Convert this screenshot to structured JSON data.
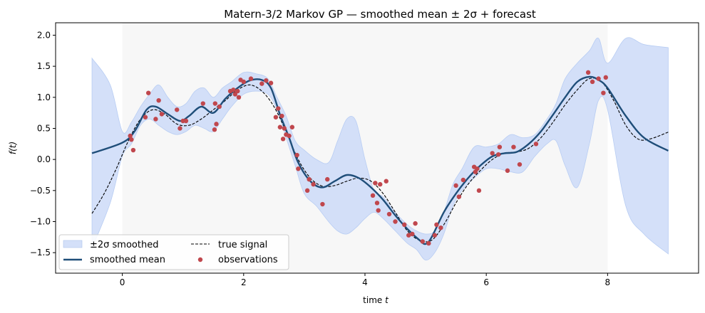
{
  "chart_data": {
    "type": "line",
    "title": "Matern-3/2 Markov GP — smoothed mean ± 2σ + forecast",
    "xlabel": "time",
    "xlabel_var": "t",
    "ylabel": "f(t)",
    "xlim": [
      -1.1,
      9.5
    ],
    "ylim": [
      -1.83,
      2.2
    ],
    "xticks": [
      0,
      2,
      4,
      6,
      8
    ],
    "yticks": [
      -1.5,
      -1.0,
      -0.5,
      0.0,
      0.5,
      1.0,
      1.5,
      2.0
    ],
    "xtick_labels": [
      "0",
      "2",
      "4",
      "6",
      "8"
    ],
    "ytick_labels": [
      "−1.5",
      "−1.0",
      "−0.5",
      "0.0",
      "0.5",
      "1.0",
      "1.5",
      "2.0"
    ],
    "shaded_region": {
      "x": [
        0,
        8
      ],
      "color": "#f7f7f7"
    },
    "grid": false,
    "legend_position": "lower-left",
    "legend": [
      {
        "label": "±2σ smoothed",
        "kind": "band"
      },
      {
        "label": "smoothed mean",
        "kind": "line"
      },
      {
        "label": "true signal",
        "kind": "dashed"
      },
      {
        "label": "observations",
        "kind": "dot"
      }
    ],
    "colors": {
      "band": "#c9d8f7",
      "mean": "#1f4e79",
      "true": "#000000",
      "obs": "#c0474d"
    },
    "series": [
      {
        "name": "smoothed mean",
        "x": [
          -0.5,
          0.0,
          0.2,
          0.4,
          0.55,
          0.75,
          0.95,
          1.1,
          1.3,
          1.5,
          1.7,
          1.9,
          2.1,
          2.3,
          2.45,
          2.6,
          2.75,
          2.9,
          3.1,
          3.3,
          3.5,
          3.7,
          3.9,
          4.1,
          4.3,
          4.5,
          4.7,
          4.9,
          5.0,
          5.1,
          5.3,
          5.5,
          5.7,
          5.9,
          6.1,
          6.3,
          6.5,
          6.7,
          6.9,
          7.1,
          7.3,
          7.5,
          7.7,
          7.85,
          8.0,
          8.3,
          8.6,
          9.0
        ],
        "y": [
          0.1,
          0.27,
          0.45,
          0.8,
          0.85,
          0.73,
          0.62,
          0.7,
          0.85,
          0.75,
          0.98,
          1.15,
          1.27,
          1.28,
          1.15,
          0.72,
          0.35,
          -0.05,
          -0.35,
          -0.45,
          -0.35,
          -0.25,
          -0.3,
          -0.45,
          -0.65,
          -0.9,
          -1.12,
          -1.3,
          -1.36,
          -1.25,
          -0.85,
          -0.55,
          -0.3,
          -0.1,
          0.05,
          0.1,
          0.12,
          0.25,
          0.45,
          0.72,
          1.0,
          1.25,
          1.33,
          1.28,
          1.15,
          0.7,
          0.35,
          0.14
        ]
      },
      {
        "name": "true signal",
        "x": [
          -0.5,
          -0.3,
          -0.1,
          0.1,
          0.3,
          0.5,
          0.7,
          0.9,
          1.1,
          1.3,
          1.5,
          1.7,
          1.9,
          2.1,
          2.3,
          2.5,
          2.7,
          2.9,
          3.1,
          3.3,
          3.5,
          3.7,
          3.9,
          4.1,
          4.3,
          4.5,
          4.7,
          4.9,
          5.1,
          5.3,
          5.5,
          5.7,
          5.9,
          6.1,
          6.3,
          6.5,
          6.7,
          6.9,
          7.1,
          7.3,
          7.5,
          7.7,
          7.9,
          8.1,
          8.3,
          8.5,
          8.7,
          9.0
        ],
        "y": [
          -0.87,
          -0.55,
          -0.15,
          0.3,
          0.65,
          0.8,
          0.73,
          0.57,
          0.55,
          0.65,
          0.8,
          0.95,
          1.12,
          1.2,
          1.1,
          0.85,
          0.45,
          0.0,
          -0.3,
          -0.43,
          -0.42,
          -0.35,
          -0.3,
          -0.35,
          -0.55,
          -0.85,
          -1.15,
          -1.3,
          -1.3,
          -1.05,
          -0.7,
          -0.4,
          -0.18,
          0.0,
          0.1,
          0.12,
          0.18,
          0.35,
          0.6,
          0.88,
          1.12,
          1.3,
          1.25,
          0.95,
          0.55,
          0.33,
          0.33,
          0.44
        ]
      }
    ],
    "band": {
      "name": "±2σ smoothed",
      "x": [
        -0.5,
        -0.2,
        0.0,
        0.15,
        0.3,
        0.45,
        0.6,
        0.75,
        0.9,
        1.05,
        1.2,
        1.35,
        1.5,
        1.65,
        1.8,
        2.0,
        2.2,
        2.4,
        2.55,
        2.7,
        2.85,
        3.0,
        3.2,
        3.4,
        3.55,
        3.7,
        3.85,
        4.0,
        4.15,
        4.3,
        4.5,
        4.7,
        4.85,
        5.0,
        5.15,
        5.3,
        5.45,
        5.6,
        5.8,
        6.0,
        6.2,
        6.4,
        6.6,
        6.8,
        7.0,
        7.15,
        7.3,
        7.5,
        7.7,
        7.85,
        8.0,
        8.3,
        8.6,
        9.0
      ],
      "upper": [
        1.63,
        1.2,
        0.45,
        0.6,
        0.85,
        1.05,
        1.2,
        1.0,
        0.85,
        0.9,
        1.1,
        1.15,
        1.0,
        1.15,
        1.25,
        1.4,
        1.38,
        1.3,
        1.0,
        0.7,
        0.3,
        0.15,
        0.0,
        -0.05,
        0.3,
        0.65,
        0.62,
        0.0,
        -0.5,
        -0.6,
        -0.85,
        -1.05,
        -1.15,
        -1.2,
        -1.15,
        -0.85,
        -0.4,
        -0.15,
        0.2,
        0.2,
        0.25,
        0.4,
        0.35,
        0.4,
        0.65,
        0.9,
        1.3,
        1.55,
        1.75,
        1.95,
        1.55,
        1.95,
        1.85,
        1.8
      ],
      "lower": [
        -1.43,
        -0.7,
        0.05,
        0.25,
        0.55,
        0.65,
        0.55,
        0.45,
        0.4,
        0.45,
        0.55,
        0.5,
        0.45,
        0.65,
        0.85,
        1.05,
        1.1,
        1.05,
        0.8,
        0.35,
        -0.1,
        -0.55,
        -0.75,
        -1.0,
        -1.15,
        -1.2,
        -1.1,
        -0.95,
        -0.85,
        -0.95,
        -1.15,
        -1.35,
        -1.45,
        -1.62,
        -1.5,
        -1.2,
        -0.75,
        -0.5,
        -0.3,
        -0.15,
        -0.15,
        -0.2,
        -0.2,
        0.05,
        0.25,
        0.3,
        -0.1,
        -0.45,
        0.25,
        0.95,
        0.8,
        -0.75,
        -1.2,
        -1.52
      ]
    },
    "observations": {
      "name": "observations",
      "x": [
        0.13,
        0.15,
        0.18,
        0.38,
        0.43,
        0.55,
        0.6,
        0.65,
        0.9,
        0.95,
        1.0,
        1.05,
        1.33,
        1.52,
        1.53,
        1.55,
        1.6,
        1.78,
        1.83,
        1.86,
        1.9,
        1.92,
        1.95,
        2.0,
        2.12,
        2.3,
        2.37,
        2.45,
        2.53,
        2.57,
        2.6,
        2.63,
        2.65,
        2.67,
        2.7,
        2.75,
        2.8,
        2.88,
        2.9,
        3.05,
        3.08,
        3.15,
        3.3,
        3.38,
        4.13,
        4.17,
        4.2,
        4.22,
        4.25,
        4.35,
        4.4,
        4.5,
        4.65,
        4.72,
        4.78,
        4.83,
        4.95,
        5.05,
        5.15,
        5.18,
        5.25,
        5.5,
        5.55,
        5.62,
        5.8,
        5.82,
        5.85,
        5.88,
        6.1,
        6.2,
        6.22,
        6.35,
        6.45,
        6.55,
        6.82,
        7.68,
        7.75,
        7.85,
        7.93,
        7.97
      ],
      "y": [
        0.38,
        0.32,
        0.15,
        0.68,
        1.07,
        0.65,
        0.95,
        0.73,
        0.8,
        0.5,
        0.62,
        0.62,
        0.9,
        0.48,
        0.9,
        0.57,
        0.85,
        1.1,
        1.12,
        1.05,
        1.1,
        1.0,
        1.28,
        1.25,
        1.3,
        1.22,
        1.27,
        1.23,
        0.68,
        0.82,
        0.52,
        0.7,
        0.33,
        0.5,
        0.4,
        0.38,
        0.52,
        0.07,
        -0.15,
        -0.5,
        -0.32,
        -0.4,
        -0.72,
        -0.32,
        -0.58,
        -0.38,
        -0.7,
        -0.82,
        -0.4,
        -0.35,
        -0.88,
        -1.0,
        -1.05,
        -1.22,
        -1.2,
        -1.03,
        -1.32,
        -1.35,
        -1.22,
        -1.05,
        -1.1,
        -0.42,
        -0.6,
        -0.33,
        -0.12,
        -0.2,
        -0.15,
        -0.5,
        0.1,
        0.08,
        0.2,
        -0.18,
        0.2,
        -0.08,
        0.25,
        1.4,
        1.25,
        1.3,
        1.07,
        1.32
      ]
    }
  }
}
